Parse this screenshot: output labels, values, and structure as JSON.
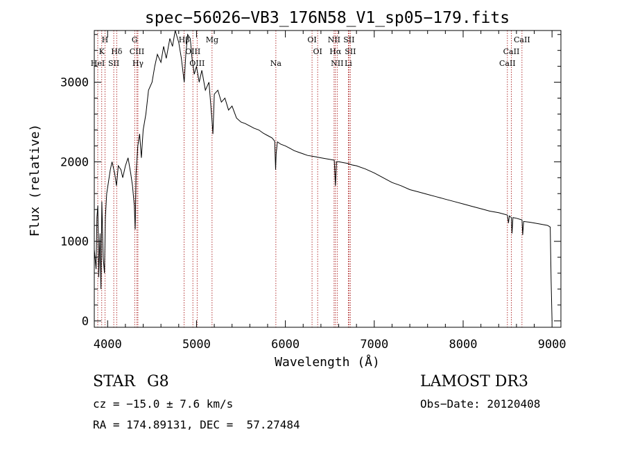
{
  "chart_data": {
    "type": "line",
    "title": "spec−56026−VB3_176N58_V1_sp05−179.fits",
    "xlabel": "Wavelength (Å)",
    "ylabel": "Flux (relative)",
    "xlim": [
      3850,
      9100
    ],
    "ylim": [
      -80,
      3650
    ],
    "x_ticks": [
      4000,
      5000,
      6000,
      7000,
      8000,
      9000
    ],
    "y_ticks": [
      0,
      1000,
      2000,
      3000
    ],
    "grid": false,
    "line_color": "#000000",
    "marker_color": "#a00000",
    "series": [
      {
        "name": "flux",
        "points": [
          [
            3850,
            900
          ],
          [
            3870,
            650
          ],
          [
            3880,
            1300
          ],
          [
            3890,
            1450
          ],
          [
            3900,
            550
          ],
          [
            3915,
            1100
          ],
          [
            3925,
            400
          ],
          [
            3935,
            1500
          ],
          [
            3950,
            800
          ],
          [
            3965,
            600
          ],
          [
            3975,
            1300
          ],
          [
            3990,
            1600
          ],
          [
            4010,
            1750
          ],
          [
            4030,
            1900
          ],
          [
            4050,
            2000
          ],
          [
            4080,
            1850
          ],
          [
            4100,
            1700
          ],
          [
            4120,
            1950
          ],
          [
            4150,
            1900
          ],
          [
            4170,
            1800
          ],
          [
            4200,
            1950
          ],
          [
            4230,
            2050
          ],
          [
            4260,
            1850
          ],
          [
            4280,
            1700
          ],
          [
            4300,
            1450
          ],
          [
            4310,
            1150
          ],
          [
            4320,
            1850
          ],
          [
            4340,
            2200
          ],
          [
            4360,
            2350
          ],
          [
            4380,
            2050
          ],
          [
            4400,
            2400
          ],
          [
            4430,
            2600
          ],
          [
            4460,
            2900
          ],
          [
            4500,
            3000
          ],
          [
            4530,
            3200
          ],
          [
            4560,
            3350
          ],
          [
            4600,
            3250
          ],
          [
            4630,
            3450
          ],
          [
            4660,
            3300
          ],
          [
            4700,
            3550
          ],
          [
            4730,
            3450
          ],
          [
            4760,
            3650
          ],
          [
            4800,
            3500
          ],
          [
            4830,
            3300
          ],
          [
            4862,
            3000
          ],
          [
            4880,
            3350
          ],
          [
            4900,
            3600
          ],
          [
            4930,
            3550
          ],
          [
            4950,
            3300
          ],
          [
            4975,
            3100
          ],
          [
            5000,
            3200
          ],
          [
            5030,
            3000
          ],
          [
            5060,
            3150
          ],
          [
            5100,
            2900
          ],
          [
            5140,
            3000
          ],
          [
            5172,
            2550
          ],
          [
            5185,
            2350
          ],
          [
            5200,
            2850
          ],
          [
            5240,
            2900
          ],
          [
            5280,
            2750
          ],
          [
            5320,
            2800
          ],
          [
            5360,
            2650
          ],
          [
            5400,
            2700
          ],
          [
            5450,
            2550
          ],
          [
            5500,
            2500
          ],
          [
            5550,
            2480
          ],
          [
            5600,
            2450
          ],
          [
            5650,
            2420
          ],
          [
            5700,
            2400
          ],
          [
            5750,
            2360
          ],
          [
            5800,
            2330
          ],
          [
            5850,
            2300
          ],
          [
            5880,
            2260
          ],
          [
            5890,
            1900
          ],
          [
            5896,
            2100
          ],
          [
            5910,
            2250
          ],
          [
            5950,
            2220
          ],
          [
            6000,
            2200
          ],
          [
            6050,
            2170
          ],
          [
            6100,
            2140
          ],
          [
            6150,
            2120
          ],
          [
            6200,
            2100
          ],
          [
            6250,
            2080
          ],
          [
            6300,
            2070
          ],
          [
            6350,
            2060
          ],
          [
            6400,
            2050
          ],
          [
            6450,
            2040
          ],
          [
            6500,
            2030
          ],
          [
            6550,
            2020
          ],
          [
            6563,
            1700
          ],
          [
            6575,
            2000
          ],
          [
            6600,
            2000
          ],
          [
            6650,
            1990
          ],
          [
            6700,
            1980
          ],
          [
            6750,
            1960
          ],
          [
            6800,
            1950
          ],
          [
            6900,
            1910
          ],
          [
            7000,
            1860
          ],
          [
            7100,
            1800
          ],
          [
            7200,
            1740
          ],
          [
            7300,
            1700
          ],
          [
            7400,
            1650
          ],
          [
            7500,
            1620
          ],
          [
            7600,
            1590
          ],
          [
            7700,
            1560
          ],
          [
            7800,
            1530
          ],
          [
            7900,
            1500
          ],
          [
            8000,
            1470
          ],
          [
            8100,
            1440
          ],
          [
            8200,
            1410
          ],
          [
            8300,
            1380
          ],
          [
            8400,
            1360
          ],
          [
            8498,
            1330
          ],
          [
            8510,
            1230
          ],
          [
            8520,
            1320
          ],
          [
            8542,
            1300
          ],
          [
            8550,
            1100
          ],
          [
            8560,
            1300
          ],
          [
            8600,
            1290
          ],
          [
            8662,
            1270
          ],
          [
            8670,
            1080
          ],
          [
            8680,
            1250
          ],
          [
            8750,
            1240
          ],
          [
            8850,
            1220
          ],
          [
            8950,
            1200
          ],
          [
            8980,
            1180
          ],
          [
            8990,
            500
          ],
          [
            9000,
            0
          ]
        ]
      }
    ],
    "lines": [
      {
        "label": "H",
        "x": 3970,
        "row": 0
      },
      {
        "label": "K",
        "x": 3934,
        "row": 1
      },
      {
        "label": "HeI",
        "x": 3889,
        "row": 2
      },
      {
        "label": "SII",
        "x": 4069,
        "row": 2
      },
      {
        "label": "Hδ",
        "x": 4102,
        "row": 1
      },
      {
        "label": "G",
        "x": 4305,
        "row": 0
      },
      {
        "label": "CIII",
        "x": 4330,
        "row": 1
      },
      {
        "label": "Hγ",
        "x": 4341,
        "row": 2
      },
      {
        "label": "Hβ",
        "x": 4861,
        "row": 0
      },
      {
        "label": "OIII",
        "x": 4959,
        "row": 1
      },
      {
        "label": "OIII",
        "x": 5007,
        "row": 2
      },
      {
        "label": "Mg",
        "x": 5175,
        "row": 0
      },
      {
        "label": "Na",
        "x": 5893,
        "row": 2
      },
      {
        "label": "OI",
        "x": 6300,
        "row": 0
      },
      {
        "label": "OI",
        "x": 6363,
        "row": 1
      },
      {
        "label": "NII",
        "x": 6548,
        "row": 0
      },
      {
        "label": "Hα",
        "x": 6563,
        "row": 1
      },
      {
        "label": "NII",
        "x": 6583,
        "row": 2
      },
      {
        "label": "SII",
        "x": 6716,
        "row": 0
      },
      {
        "label": "SII",
        "x": 6731,
        "row": 1
      },
      {
        "label": "Li",
        "x": 6708,
        "row": 2
      },
      {
        "label": "CaII",
        "x": 8498,
        "row": 2
      },
      {
        "label": "CaII",
        "x": 8542,
        "row": 1
      },
      {
        "label": "CaII",
        "x": 8662,
        "row": 0
      }
    ]
  },
  "info": {
    "object_type": "STAR",
    "subclass": "G8",
    "survey": "LAMOST DR3",
    "redshift": "cz = −15.0 ± 7.6 km/s",
    "obs_date": "Obs−Date: 20120408",
    "coords": "RA = 174.89131, DEC =  57.27484"
  }
}
